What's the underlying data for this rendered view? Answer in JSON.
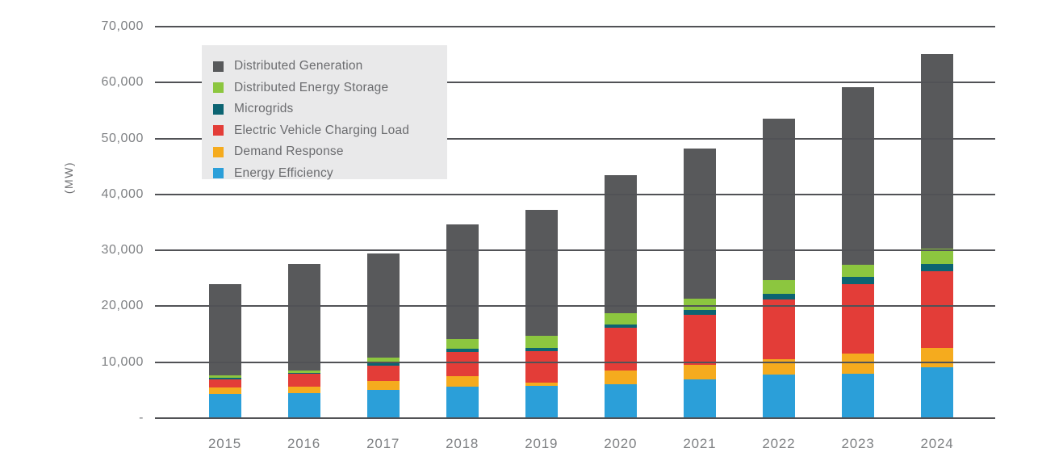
{
  "chart_data": {
    "type": "bar",
    "stacked": true,
    "title": "",
    "ylabel": "(MW)",
    "xlabel": "",
    "ylim": [
      0,
      70000
    ],
    "grid": true,
    "ytick_labels": [
      "70,000",
      "60,000",
      "50,000",
      "40,000",
      "30,000",
      "20,000",
      "10,000",
      "-"
    ],
    "ytick_values": [
      70000,
      60000,
      50000,
      40000,
      30000,
      20000,
      10000,
      0
    ],
    "categories": [
      "2015",
      "2016",
      "2017",
      "2018",
      "2019",
      "2020",
      "2021",
      "2022",
      "2023",
      "2024"
    ],
    "series": [
      {
        "key": "energy-efficiency",
        "name": "Energy Efficiency",
        "color": "#2B9FD9",
        "values": [
          4400,
          4500,
          5000,
          5600,
          5800,
          6100,
          6900,
          7800,
          8000,
          9100
        ]
      },
      {
        "key": "demand-response",
        "name": "Demand Response",
        "color": "#F5AB1E",
        "values": [
          1100,
          1100,
          1600,
          1900,
          500,
          2400,
          2600,
          2700,
          3600,
          3500
        ]
      },
      {
        "key": "ev-charging-load",
        "name": "Electric Vehicle Charging Load",
        "color": "#E33D38",
        "values": [
          1500,
          2300,
          2800,
          4300,
          5700,
          7600,
          9000,
          10700,
          12400,
          13600
        ]
      },
      {
        "key": "microgrids",
        "name": "Microgrids",
        "color": "#0C6472",
        "values": [
          250,
          250,
          450,
          600,
          600,
          600,
          900,
          1000,
          1200,
          1400
        ]
      },
      {
        "key": "distributed-energy-storage",
        "name": "Distributed Energy Storage",
        "color": "#8CC63F",
        "values": [
          400,
          400,
          1000,
          1700,
          2100,
          2000,
          2000,
          2500,
          2300,
          2700
        ]
      },
      {
        "key": "distributed-generation",
        "name": "Distributed Generation",
        "color": "#58595B",
        "values": [
          16250,
          19050,
          18550,
          20500,
          22600,
          24700,
          26800,
          28800,
          31700,
          34800
        ]
      }
    ],
    "legend": {
      "position": "top-left",
      "order_top_down": [
        "Distributed Generation",
        "Distributed Energy Storage",
        "Microgrids",
        "Electric Vehicle Charging Load",
        "Demand Response",
        "Energy Efficiency"
      ]
    }
  },
  "colors": {
    "background": "#FFFFFF",
    "gridline": "#515256",
    "axis_text": "#7E8083",
    "legend_background": "#E9E9EA",
    "legend_text": "#6B6C6F"
  }
}
